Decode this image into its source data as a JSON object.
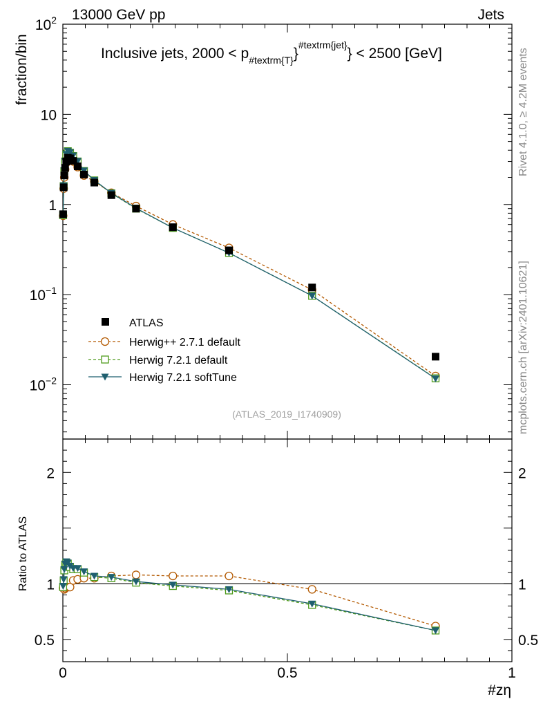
{
  "header": {
    "left_label": "13000 GeV pp",
    "right_label": "Jets"
  },
  "chart_data": {
    "type": "line",
    "title": {
      "prefix": "Inclusive jets, 2000 < p",
      "subscript": "#textrm{T}",
      "superscript": "#textrm{jet}",
      "suffix": "} < 2500 [GeV]"
    },
    "ylabel": "fraction/bin",
    "ratio_ylabel": "Ratio to ATLAS",
    "xlabel": "#zη",
    "side_label_top": "Rivet 4.1.0, ≥ 4.2M events",
    "side_label_bottom": "mcplots.cern.ch [arXiv:2401.10621]",
    "watermark": "(ATLAS_2019_I1740909)",
    "xlim": [
      0,
      1
    ],
    "ylim_log": [
      0.0025,
      100
    ],
    "ratio_ylim": [
      0.3,
      2.3
    ],
    "x_ticks": [
      {
        "value": 0,
        "label": "0"
      },
      {
        "value": 0.5,
        "label": "0.5"
      },
      {
        "value": 1,
        "label": "1"
      }
    ],
    "y_ticks": [
      {
        "value": 100,
        "base": "10",
        "exp": "2"
      },
      {
        "value": 10,
        "base": "10",
        "exp": ""
      },
      {
        "value": 1,
        "base": "1",
        "exp": ""
      },
      {
        "value": 0.1,
        "base": "10",
        "exp": "−1"
      },
      {
        "value": 0.01,
        "base": "10",
        "exp": "−2"
      }
    ],
    "ratio_ticks": [
      {
        "value": 2,
        "label": "2"
      },
      {
        "value": 1,
        "label": "1"
      },
      {
        "value": 0.5,
        "label": "0.5"
      }
    ],
    "series": [
      {
        "name": "ATLAS",
        "style": "data",
        "color": "#000000",
        "x": [
          0.0006,
          0.0018,
          0.0032,
          0.005,
          0.0075,
          0.011,
          0.016,
          0.023,
          0.033,
          0.047,
          0.07,
          0.108,
          0.163,
          0.245,
          0.37,
          0.555,
          0.83
        ],
        "y": [
          0.78,
          1.55,
          2.1,
          2.55,
          3.0,
          3.3,
          3.25,
          3.05,
          2.65,
          2.15,
          1.75,
          1.27,
          0.9,
          0.56,
          0.31,
          0.12,
          0.0205
        ]
      },
      {
        "name": "Herwig++ 2.7.1 default",
        "style": "dashed-circle",
        "color": "#b35900",
        "x": [
          0.0006,
          0.0018,
          0.0032,
          0.005,
          0.0075,
          0.011,
          0.016,
          0.023,
          0.033,
          0.047,
          0.07,
          0.108,
          0.163,
          0.245,
          0.37,
          0.555,
          0.83
        ],
        "y": [
          0.75,
          1.5,
          2.0,
          2.45,
          2.9,
          3.2,
          3.15,
          3.0,
          2.6,
          2.1,
          1.8,
          1.35,
          0.96,
          0.6,
          0.33,
          0.113,
          0.0125
        ],
        "ratio": [
          0.96,
          0.97,
          0.95,
          0.96,
          0.97,
          0.97,
          0.97,
          1.03,
          1.04,
          1.05,
          1.05,
          1.07,
          1.08,
          1.07,
          1.07,
          0.95,
          0.62
        ]
      },
      {
        "name": "Herwig 7.2.1 default",
        "style": "dashed-square",
        "color": "#4d9a1a",
        "x": [
          0.0006,
          0.0018,
          0.0032,
          0.005,
          0.0075,
          0.011,
          0.016,
          0.023,
          0.033,
          0.047,
          0.07,
          0.108,
          0.163,
          0.245,
          0.37,
          0.555,
          0.83
        ],
        "y": [
          0.76,
          1.6,
          2.35,
          3.0,
          3.6,
          3.9,
          3.75,
          3.45,
          3.0,
          2.35,
          1.85,
          1.33,
          0.9,
          0.55,
          0.29,
          0.097,
          0.0118
        ],
        "ratio": [
          0.97,
          1.03,
          1.12,
          1.17,
          1.19,
          1.18,
          1.15,
          1.13,
          1.13,
          1.1,
          1.06,
          1.05,
          1.01,
          0.98,
          0.94,
          0.81,
          0.58
        ]
      },
      {
        "name": "Herwig 7.2.1 softTune",
        "style": "solid-triangle",
        "color": "#1f5f6f",
        "x": [
          0.0006,
          0.0018,
          0.0032,
          0.005,
          0.0075,
          0.011,
          0.016,
          0.023,
          0.033,
          0.047,
          0.07,
          0.108,
          0.163,
          0.245,
          0.37,
          0.555,
          0.83
        ],
        "y": [
          0.77,
          1.62,
          2.38,
          3.02,
          3.62,
          3.92,
          3.78,
          3.48,
          3.02,
          2.37,
          1.86,
          1.34,
          0.91,
          0.55,
          0.29,
          0.097,
          0.0117
        ],
        "ratio": [
          0.98,
          1.04,
          1.13,
          1.18,
          1.2,
          1.19,
          1.16,
          1.14,
          1.14,
          1.11,
          1.07,
          1.06,
          1.02,
          0.99,
          0.95,
          0.82,
          0.58
        ]
      }
    ]
  }
}
